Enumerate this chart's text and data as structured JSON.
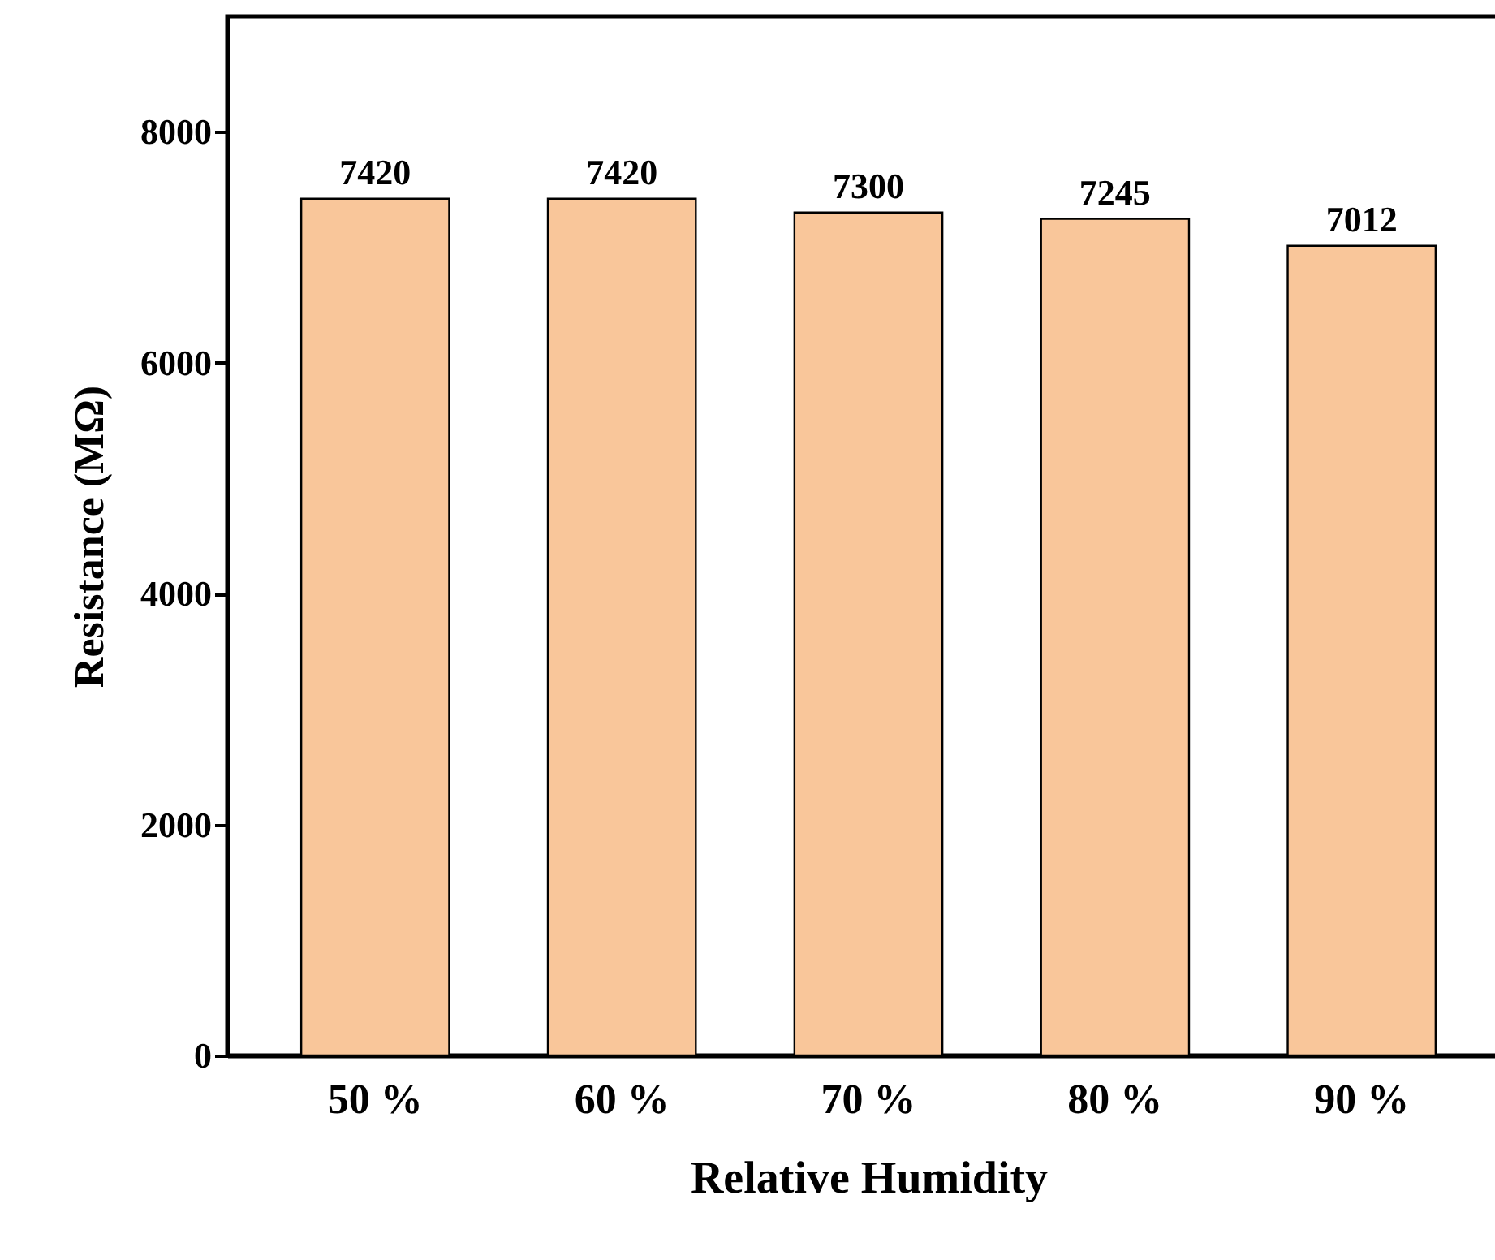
{
  "chart_data": {
    "type": "bar",
    "xlabel": "Relative Humidity",
    "ylabel": "Resistance (MΩ)",
    "categories": [
      "50 %",
      "60 %",
      "70 %",
      "80 %",
      "90 %"
    ],
    "values": [
      7420,
      7420,
      7300,
      7245,
      7012
    ],
    "color": "#f9c69a",
    "data_labels": true,
    "ylim": [
      0,
      9000
    ],
    "yticks": [
      0,
      2000,
      4000,
      6000,
      8000
    ],
    "grid": false
  }
}
